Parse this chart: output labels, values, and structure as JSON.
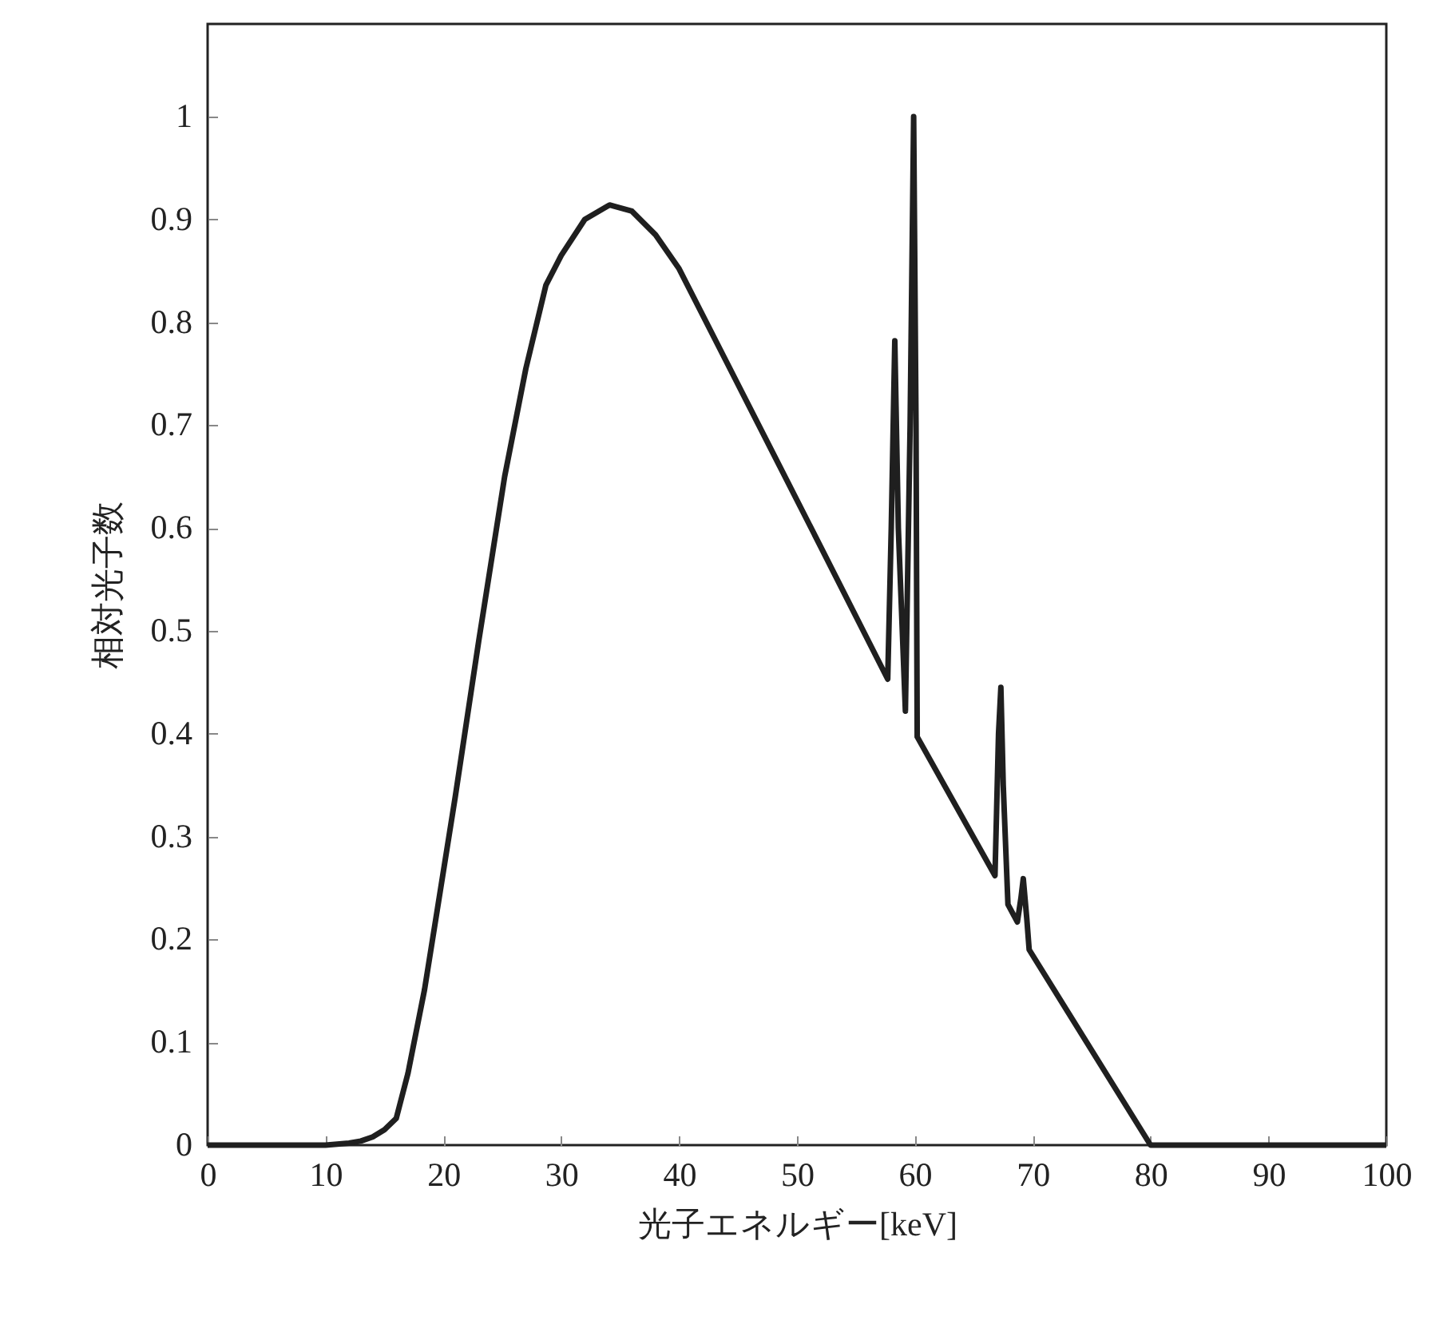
{
  "chart_data": {
    "type": "line",
    "xlabel": "光子エネルギー[keV]",
    "ylabel": "相対光子数",
    "xlim": [
      0,
      100
    ],
    "xticks": [
      0,
      10,
      20,
      30,
      40,
      50,
      60,
      70,
      80,
      90,
      100
    ],
    "ylim": [
      0,
      1.09
    ],
    "yticks": [
      0,
      0.1,
      0.2,
      0.3,
      0.4,
      0.5,
      0.6,
      0.7,
      0.8,
      0.9,
      1
    ],
    "grid": false,
    "marker": "none",
    "line_style": "solid",
    "series": [
      {
        "color": "#1f1f1f",
        "x": [
          0,
          5,
          10,
          12,
          13,
          14,
          15,
          16,
          17,
          18.4,
          19.5,
          21,
          23,
          25.2,
          27,
          28.7,
          30,
          32,
          34.1,
          36,
          38,
          40,
          44,
          48,
          52,
          57.7,
          58.0,
          58.3,
          58.6,
          59.2,
          59.6,
          59.9,
          60.1,
          60.2,
          66.8,
          67.1,
          67.3,
          67.5,
          67.9,
          68.7,
          69.0,
          69.2,
          69.5,
          69.7,
          80,
          90,
          100
        ],
        "values": [
          0,
          0,
          0,
          0.002,
          0.004,
          0.008,
          0.015,
          0.026,
          0.07,
          0.151,
          0.23,
          0.338,
          0.49,
          0.65,
          0.755,
          0.836,
          0.865,
          0.9,
          0.914,
          0.908,
          0.885,
          0.852,
          0.762,
          0.672,
          0.582,
          0.453,
          0.6,
          0.782,
          0.6,
          0.422,
          0.7,
          1.0,
          0.7,
          0.397,
          0.262,
          0.4,
          0.445,
          0.35,
          0.234,
          0.217,
          0.24,
          0.259,
          0.22,
          0.19,
          0,
          0,
          0
        ]
      }
    ]
  }
}
